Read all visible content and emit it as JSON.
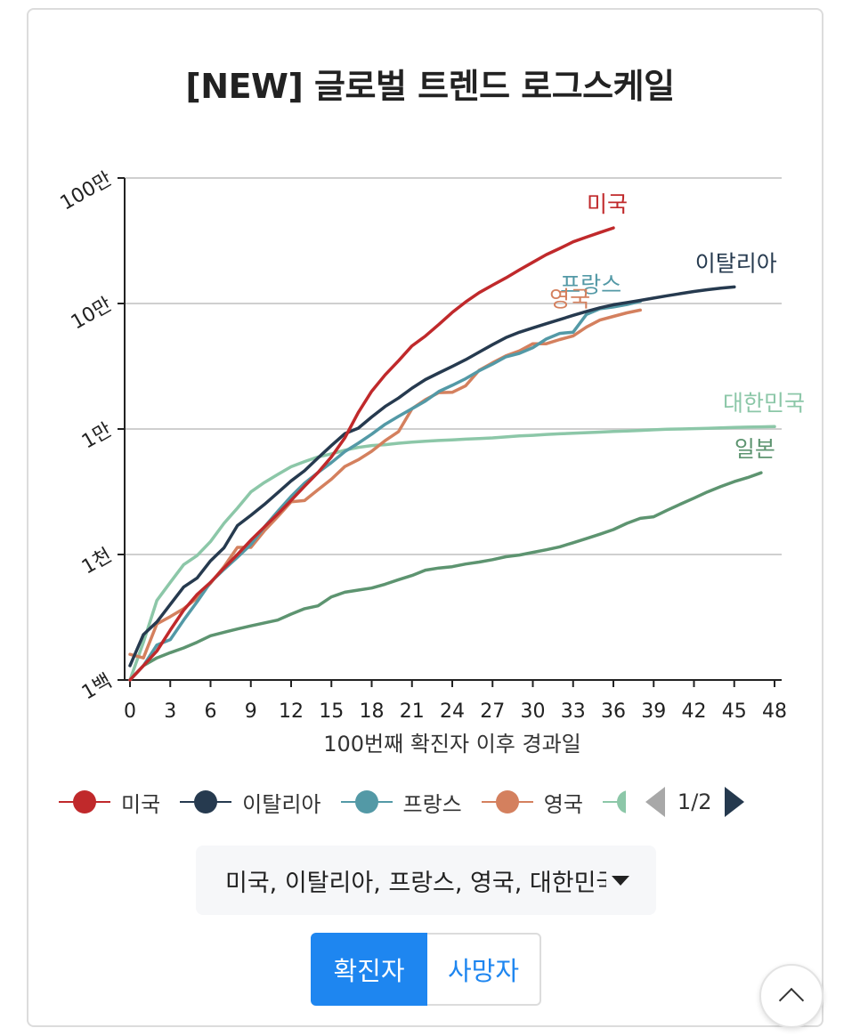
{
  "title": "[NEW] 글로벌 트렌드 로그스케일",
  "chart_data": {
    "type": "line",
    "title": "[NEW] 글로벌 트렌드 로그스케일",
    "xlabel": "100번째 확진자 이후 경과일",
    "ylabel": "",
    "y_scale": "log",
    "ylim": [
      100,
      1000000
    ],
    "xlim": [
      0,
      48
    ],
    "x_ticks": [
      "0",
      "3",
      "6",
      "9",
      "12",
      "15",
      "18",
      "21",
      "24",
      "27",
      "30",
      "33",
      "36",
      "39",
      "42",
      "45",
      "48"
    ],
    "y_ticks": [
      {
        "value": 100,
        "label": "1백"
      },
      {
        "value": 1000,
        "label": "1천"
      },
      {
        "value": 10000,
        "label": "1만"
      },
      {
        "value": 100000,
        "label": "10만"
      },
      {
        "value": 1000000,
        "label": "100만"
      }
    ],
    "grid": "horizontal",
    "series": [
      {
        "name": "미국",
        "color": "#c0292b",
        "end_label": "미국",
        "points": [
          [
            0,
            100
          ],
          [
            1,
            130
          ],
          [
            2,
            170
          ],
          [
            3,
            250
          ],
          [
            4,
            360
          ],
          [
            5,
            480
          ],
          [
            6,
            600
          ],
          [
            7,
            780
          ],
          [
            8,
            1000
          ],
          [
            9,
            1300
          ],
          [
            10,
            1650
          ],
          [
            11,
            2100
          ],
          [
            12,
            2700
          ],
          [
            13,
            3500
          ],
          [
            14,
            4500
          ],
          [
            15,
            6000
          ],
          [
            16,
            8500
          ],
          [
            17,
            13500
          ],
          [
            18,
            20000
          ],
          [
            19,
            27000
          ],
          [
            20,
            35000
          ],
          [
            21,
            46000
          ],
          [
            22,
            55000
          ],
          [
            23,
            68000
          ],
          [
            24,
            85000
          ],
          [
            25,
            103000
          ],
          [
            26,
            122000
          ],
          [
            27,
            140000
          ],
          [
            28,
            160000
          ],
          [
            29,
            185000
          ],
          [
            30,
            213000
          ],
          [
            31,
            245000
          ],
          [
            32,
            275000
          ],
          [
            33,
            310000
          ],
          [
            34,
            338000
          ],
          [
            35,
            368000
          ],
          [
            36,
            400000
          ]
        ]
      },
      {
        "name": "이탈리아",
        "color": "#263a4f",
        "end_label": "이탈리아",
        "points": [
          [
            0,
            130
          ],
          [
            1,
            230
          ],
          [
            2,
            290
          ],
          [
            3,
            400
          ],
          [
            4,
            550
          ],
          [
            5,
            650
          ],
          [
            6,
            890
          ],
          [
            7,
            1130
          ],
          [
            8,
            1700
          ],
          [
            9,
            2050
          ],
          [
            10,
            2500
          ],
          [
            11,
            3100
          ],
          [
            12,
            3860
          ],
          [
            13,
            4650
          ],
          [
            14,
            5880
          ],
          [
            15,
            7375
          ],
          [
            16,
            9170
          ],
          [
            17,
            10150
          ],
          [
            18,
            12460
          ],
          [
            19,
            15110
          ],
          [
            20,
            17660
          ],
          [
            21,
            21150
          ],
          [
            22,
            24750
          ],
          [
            23,
            27980
          ],
          [
            24,
            31500
          ],
          [
            25,
            35700
          ],
          [
            26,
            41000
          ],
          [
            27,
            47000
          ],
          [
            28,
            53500
          ],
          [
            29,
            59000
          ],
          [
            30,
            63900
          ],
          [
            31,
            69000
          ],
          [
            32,
            74400
          ],
          [
            33,
            80500
          ],
          [
            34,
            86500
          ],
          [
            35,
            92400
          ],
          [
            36,
            97700
          ],
          [
            37,
            101700
          ],
          [
            38,
            105800
          ],
          [
            39,
            110500
          ],
          [
            40,
            115200
          ],
          [
            41,
            119800
          ],
          [
            42,
            124600
          ],
          [
            43,
            128900
          ],
          [
            44,
            132500
          ],
          [
            45,
            135600
          ]
        ]
      },
      {
        "name": "프랑스",
        "color": "#5399a6",
        "end_label": "프랑스",
        "points": [
          [
            0,
            100
          ],
          [
            1,
            130
          ],
          [
            2,
            190
          ],
          [
            3,
            210
          ],
          [
            4,
            300
          ],
          [
            5,
            420
          ],
          [
            6,
            600
          ],
          [
            7,
            760
          ],
          [
            8,
            950
          ],
          [
            9,
            1200
          ],
          [
            10,
            1650
          ],
          [
            11,
            2200
          ],
          [
            12,
            2900
          ],
          [
            13,
            3700
          ],
          [
            14,
            4500
          ],
          [
            15,
            5400
          ],
          [
            16,
            6600
          ],
          [
            17,
            7700
          ],
          [
            18,
            9100
          ],
          [
            19,
            10900
          ],
          [
            20,
            12600
          ],
          [
            21,
            14500
          ],
          [
            22,
            16700
          ],
          [
            23,
            19900
          ],
          [
            24,
            22300
          ],
          [
            25,
            25200
          ],
          [
            26,
            29100
          ],
          [
            27,
            32900
          ],
          [
            28,
            37600
          ],
          [
            29,
            40100
          ],
          [
            30,
            44500
          ],
          [
            31,
            52100
          ],
          [
            32,
            57800
          ],
          [
            33,
            59100
          ],
          [
            34,
            82000
          ],
          [
            35,
            90800
          ],
          [
            36,
            93800
          ],
          [
            37,
            98000
          ],
          [
            38,
            104000
          ]
        ]
      },
      {
        "name": "영국",
        "color": "#d4805e",
        "end_label": "영국",
        "points": [
          [
            0,
            160
          ],
          [
            1,
            150
          ],
          [
            2,
            280
          ],
          [
            3,
            320
          ],
          [
            4,
            370
          ],
          [
            5,
            450
          ],
          [
            6,
            590
          ],
          [
            7,
            800
          ],
          [
            8,
            1140
          ],
          [
            9,
            1140
          ],
          [
            10,
            1540
          ],
          [
            11,
            2000
          ],
          [
            12,
            2630
          ],
          [
            13,
            2690
          ],
          [
            14,
            3280
          ],
          [
            15,
            3980
          ],
          [
            16,
            5020
          ],
          [
            17,
            5680
          ],
          [
            18,
            6650
          ],
          [
            19,
            8070
          ],
          [
            20,
            9530
          ],
          [
            21,
            14500
          ],
          [
            22,
            17100
          ],
          [
            23,
            19500
          ],
          [
            24,
            19600
          ],
          [
            25,
            22100
          ],
          [
            26,
            29400
          ],
          [
            27,
            33700
          ],
          [
            28,
            38300
          ],
          [
            29,
            41900
          ],
          [
            30,
            47800
          ],
          [
            31,
            47800
          ],
          [
            32,
            51600
          ],
          [
            33,
            55200
          ],
          [
            34,
            65000
          ],
          [
            35,
            73800
          ],
          [
            36,
            78900
          ],
          [
            37,
            84300
          ],
          [
            38,
            88600
          ]
        ]
      },
      {
        "name": "대한민국",
        "color": "#8cc7a8",
        "end_label": "대한민국",
        "points": [
          [
            0,
            100
          ],
          [
            1,
            200
          ],
          [
            2,
            430
          ],
          [
            3,
            600
          ],
          [
            4,
            830
          ],
          [
            5,
            980
          ],
          [
            6,
            1270
          ],
          [
            7,
            1770
          ],
          [
            8,
            2340
          ],
          [
            9,
            3150
          ],
          [
            10,
            3740
          ],
          [
            11,
            4340
          ],
          [
            12,
            5000
          ],
          [
            13,
            5500
          ],
          [
            14,
            5990
          ],
          [
            15,
            6340
          ],
          [
            16,
            6780
          ],
          [
            17,
            7130
          ],
          [
            18,
            7380
          ],
          [
            19,
            7500
          ],
          [
            20,
            7700
          ],
          [
            21,
            7870
          ],
          [
            22,
            8000
          ],
          [
            23,
            8100
          ],
          [
            24,
            8200
          ],
          [
            25,
            8300
          ],
          [
            26,
            8400
          ],
          [
            27,
            8500
          ],
          [
            28,
            8650
          ],
          [
            29,
            8800
          ],
          [
            30,
            8900
          ],
          [
            31,
            9050
          ],
          [
            32,
            9150
          ],
          [
            33,
            9250
          ],
          [
            34,
            9350
          ],
          [
            35,
            9450
          ],
          [
            36,
            9550
          ],
          [
            37,
            9650
          ],
          [
            38,
            9750
          ],
          [
            39,
            9850
          ],
          [
            40,
            9950
          ],
          [
            41,
            10000
          ],
          [
            42,
            10060
          ],
          [
            43,
            10120
          ],
          [
            44,
            10200
          ],
          [
            45,
            10280
          ],
          [
            46,
            10350
          ],
          [
            47,
            10400
          ],
          [
            48,
            10450
          ]
        ]
      },
      {
        "name": "일본",
        "color": "#5d9470",
        "end_label": "일본",
        "points": [
          [
            0,
            100
          ],
          [
            1,
            130
          ],
          [
            2,
            150
          ],
          [
            3,
            165
          ],
          [
            4,
            180
          ],
          [
            5,
            200
          ],
          [
            6,
            225
          ],
          [
            7,
            240
          ],
          [
            8,
            255
          ],
          [
            9,
            270
          ],
          [
            10,
            285
          ],
          [
            11,
            300
          ],
          [
            12,
            335
          ],
          [
            13,
            370
          ],
          [
            14,
            390
          ],
          [
            15,
            460
          ],
          [
            16,
            500
          ],
          [
            17,
            520
          ],
          [
            18,
            540
          ],
          [
            19,
            580
          ],
          [
            20,
            630
          ],
          [
            21,
            680
          ],
          [
            22,
            750
          ],
          [
            23,
            780
          ],
          [
            24,
            800
          ],
          [
            25,
            840
          ],
          [
            26,
            870
          ],
          [
            27,
            910
          ],
          [
            28,
            960
          ],
          [
            29,
            990
          ],
          [
            30,
            1040
          ],
          [
            31,
            1090
          ],
          [
            32,
            1150
          ],
          [
            33,
            1240
          ],
          [
            34,
            1340
          ],
          [
            35,
            1450
          ],
          [
            36,
            1580
          ],
          [
            37,
            1770
          ],
          [
            38,
            1940
          ],
          [
            39,
            2000
          ],
          [
            40,
            2250
          ],
          [
            41,
            2520
          ],
          [
            42,
            2810
          ],
          [
            43,
            3150
          ],
          [
            44,
            3480
          ],
          [
            45,
            3810
          ],
          [
            46,
            4100
          ],
          [
            47,
            4480
          ]
        ]
      }
    ]
  },
  "legend": {
    "items": [
      {
        "label": "미국",
        "color": "#c0292b"
      },
      {
        "label": "이탈리아",
        "color": "#263a4f"
      },
      {
        "label": "프랑스",
        "color": "#5399a6"
      },
      {
        "label": "영국",
        "color": "#d4805e"
      }
    ],
    "partial_color": "#8cc7a8",
    "page": "1/2"
  },
  "selector": {
    "value": "미국, 이탈리아, 프랑스, 영국, 대한민국"
  },
  "toggle": {
    "active": "확진자",
    "inactive": "사망자"
  }
}
